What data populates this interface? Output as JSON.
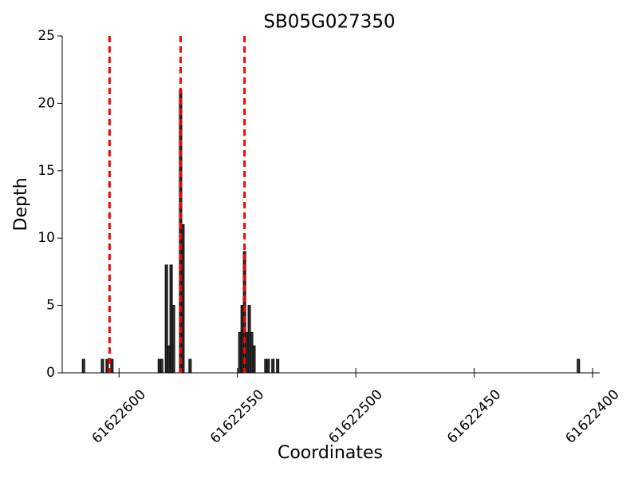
{
  "chart_data": {
    "type": "bar",
    "title": "SB05G027350",
    "x_label": "Coordinates",
    "y_label": "Depth",
    "x": [
      61622615,
      61622607,
      61622605,
      61622603,
      61622583,
      61622582,
      61622580,
      61622579,
      61622578,
      61622577,
      61622574,
      61622573,
      61622570,
      61622549,
      61622548,
      61622547,
      61622546,
      61622545,
      61622544,
      61622543,
      61622538,
      61622537,
      61622535,
      61622533,
      61622406
    ],
    "values": [
      1,
      1,
      1,
      1,
      1,
      1,
      8,
      2,
      8,
      5,
      21,
      11,
      1,
      3,
      5,
      9,
      3,
      5,
      3,
      2,
      1,
      1,
      1,
      1,
      1
    ],
    "color": "#333333",
    "edgecolor": "#000000",
    "xlim": [
      61622624,
      61622397
    ],
    "xticks": [
      61622600,
      61622550,
      61622500,
      61622450,
      61622400
    ],
    "ylim": [
      0,
      25
    ],
    "yticks": [
      0,
      5,
      10,
      15,
      20,
      25
    ],
    "vlines": {
      "values": [
        61622604,
        61622574,
        61622547
      ],
      "color": "#ff0000"
    }
  }
}
